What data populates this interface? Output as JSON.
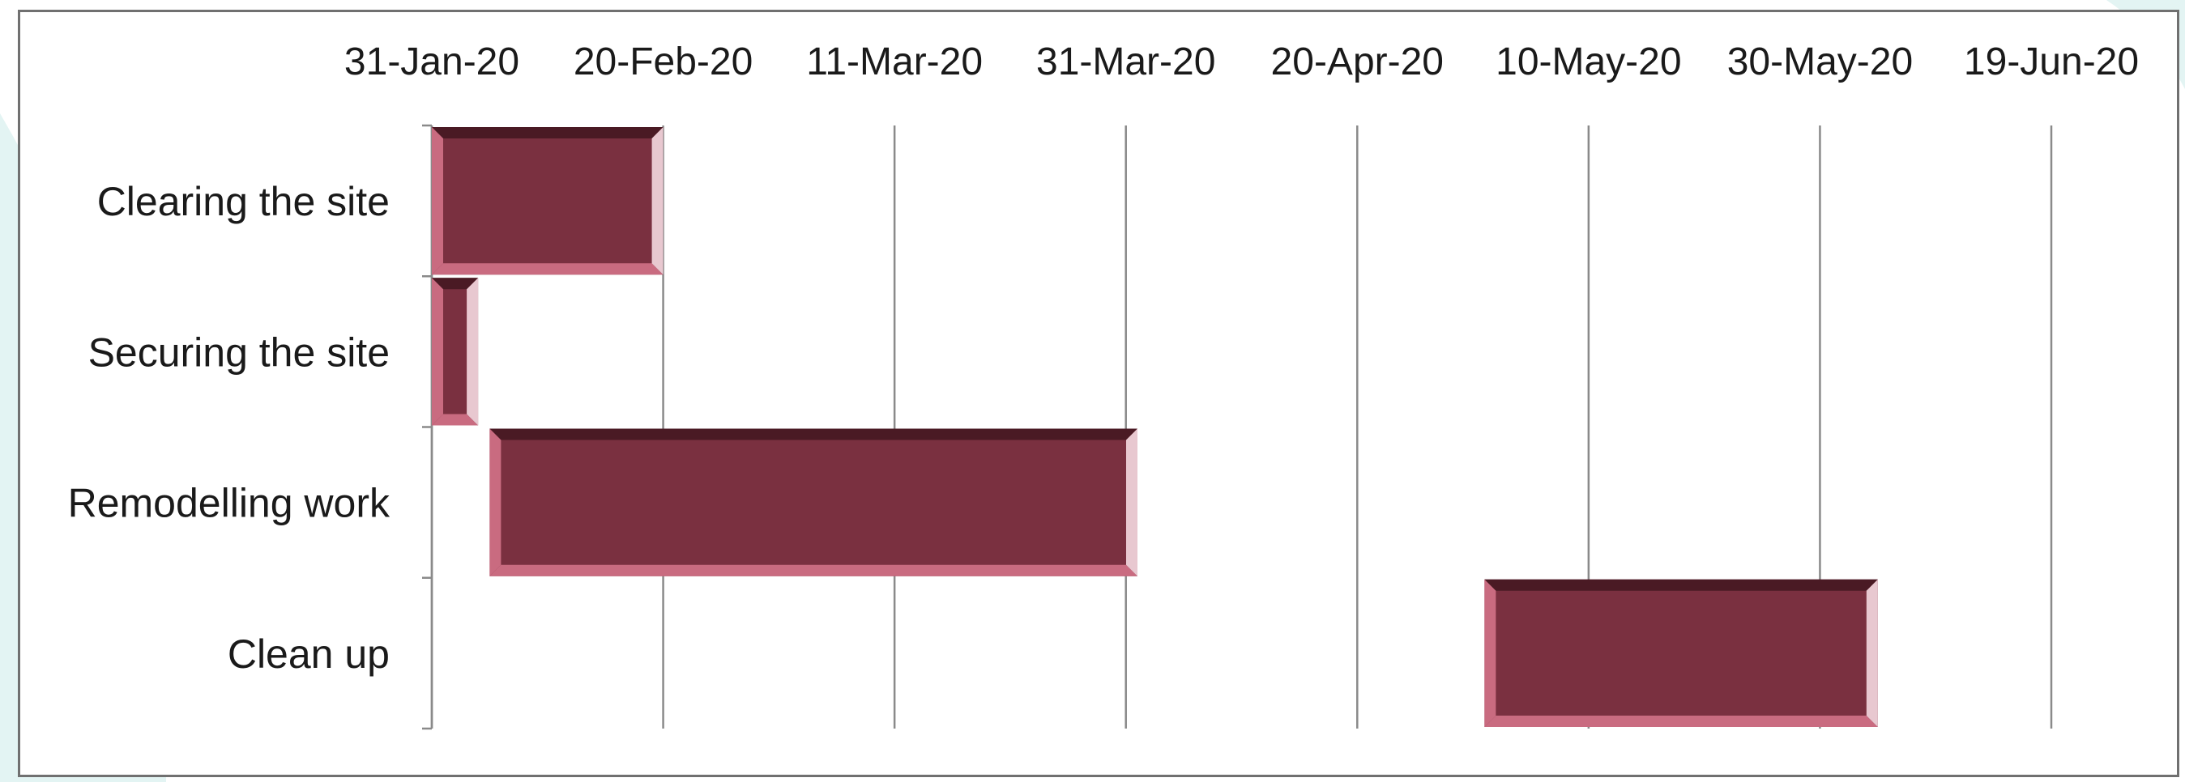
{
  "colors": {
    "bar_fill": "#7a3040",
    "bar_light": "#c96b80",
    "bar_dark": "#4a1a24",
    "gridline": "#8a8a8a",
    "frame": "#707070",
    "background_accent": "#e3f4f3"
  },
  "chart_data": {
    "type": "bar",
    "orientation": "horizontal",
    "subtype": "gantt",
    "title": "",
    "xlabel": "",
    "ylabel": "",
    "x_axis_position": "top",
    "x_ticks": [
      "31-Jan-20",
      "20-Feb-20",
      "11-Mar-20",
      "31-Mar-20",
      "20-Apr-20",
      "10-May-20",
      "30-May-20",
      "19-Jun-20"
    ],
    "xlim": [
      "2020-01-31",
      "2020-06-19"
    ],
    "grid": true,
    "legend": "none",
    "categories": [
      "Clearing the site",
      "Securing the site",
      "Remodelling work",
      "Clean up"
    ],
    "tasks": [
      {
        "name": "Clearing the site",
        "start": "2020-01-31",
        "end": "2020-02-20"
      },
      {
        "name": "Securing the site",
        "start": "2020-01-31",
        "end": "2020-02-04"
      },
      {
        "name": "Remodelling work",
        "start": "2020-02-05",
        "end": "2020-04-01"
      },
      {
        "name": "Clean up",
        "start": "2020-05-01",
        "end": "2020-06-04"
      }
    ]
  }
}
